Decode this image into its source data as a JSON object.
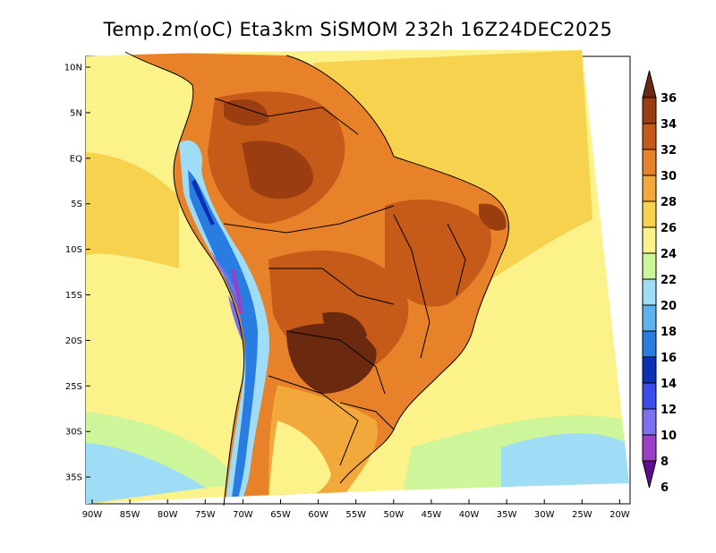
{
  "title": "Temp.2m(oC) Eta3km SiSMOM 232h 16Z24DEC2025",
  "lat_ticks": [
    "10N",
    "5N",
    "EQ",
    "5S",
    "10S",
    "15S",
    "20S",
    "25S",
    "30S",
    "35S"
  ],
  "lon_ticks": [
    "90W",
    "85W",
    "80W",
    "75W",
    "70W",
    "65W",
    "60W",
    "55W",
    "50W",
    "45W",
    "40W",
    "35W",
    "30W",
    "25W",
    "20W"
  ],
  "colorbar": {
    "labels": [
      "36",
      "34",
      "32",
      "30",
      "28",
      "26",
      "24",
      "22",
      "20",
      "18",
      "16",
      "14",
      "12",
      "10",
      "8",
      "6"
    ],
    "colors": [
      "#6b2a10",
      "#9a3e12",
      "#c65a18",
      "#e8822a",
      "#f2a83a",
      "#f7d24e",
      "#fbf28a",
      "#cdf59a",
      "#9fdcf5",
      "#5fb1ef",
      "#2a7de0",
      "#0c2fb6",
      "#3a4dea",
      "#7c6ff0",
      "#9b3fc9",
      "#5e0f8e"
    ]
  }
}
